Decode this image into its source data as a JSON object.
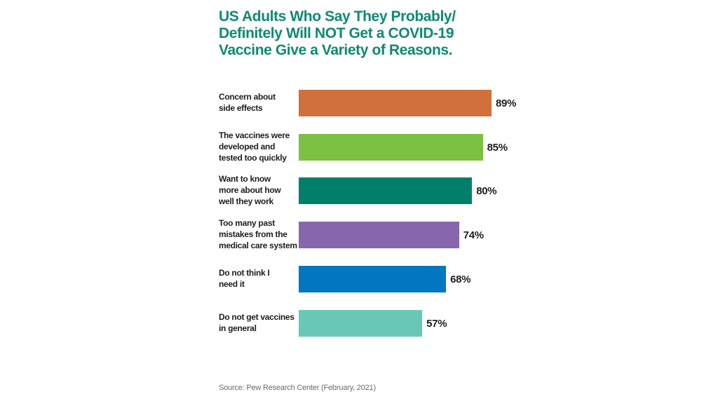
{
  "chart_data": {
    "type": "bar",
    "orientation": "horizontal",
    "title_lines": [
      "US Adults Who Say They Probably/",
      "Definitely Will NOT Get a COVID-19",
      "Vaccine Give a Variety of Reasons."
    ],
    "unit": "%",
    "xlim": [
      0,
      100
    ],
    "categories": [
      {
        "label_lines": [
          "Concern about",
          "side effects"
        ],
        "value": 89,
        "value_label": "89%",
        "color": "#d0703d"
      },
      {
        "label_lines": [
          "The vaccines were",
          "developed and",
          "tested too quickly"
        ],
        "value": 85,
        "value_label": "85%",
        "color": "#7cc142"
      },
      {
        "label_lines": [
          "Want to know",
          "more about how",
          "well they work"
        ],
        "value": 80,
        "value_label": "80%",
        "color": "#00806a"
      },
      {
        "label_lines": [
          "Too many past",
          "mistakes from the",
          "medical care system"
        ],
        "value": 74,
        "value_label": "74%",
        "color": "#8866ae"
      },
      {
        "label_lines": [
          "Do not think I",
          "need it"
        ],
        "value": 68,
        "value_label": "68%",
        "color": "#0077c0"
      },
      {
        "label_lines": [
          "Do not get vaccines",
          "in general"
        ],
        "value": 57,
        "value_label": "57%",
        "color": "#68c8b6"
      }
    ],
    "source": "Source: Pew Research Center (February, 2021)"
  }
}
